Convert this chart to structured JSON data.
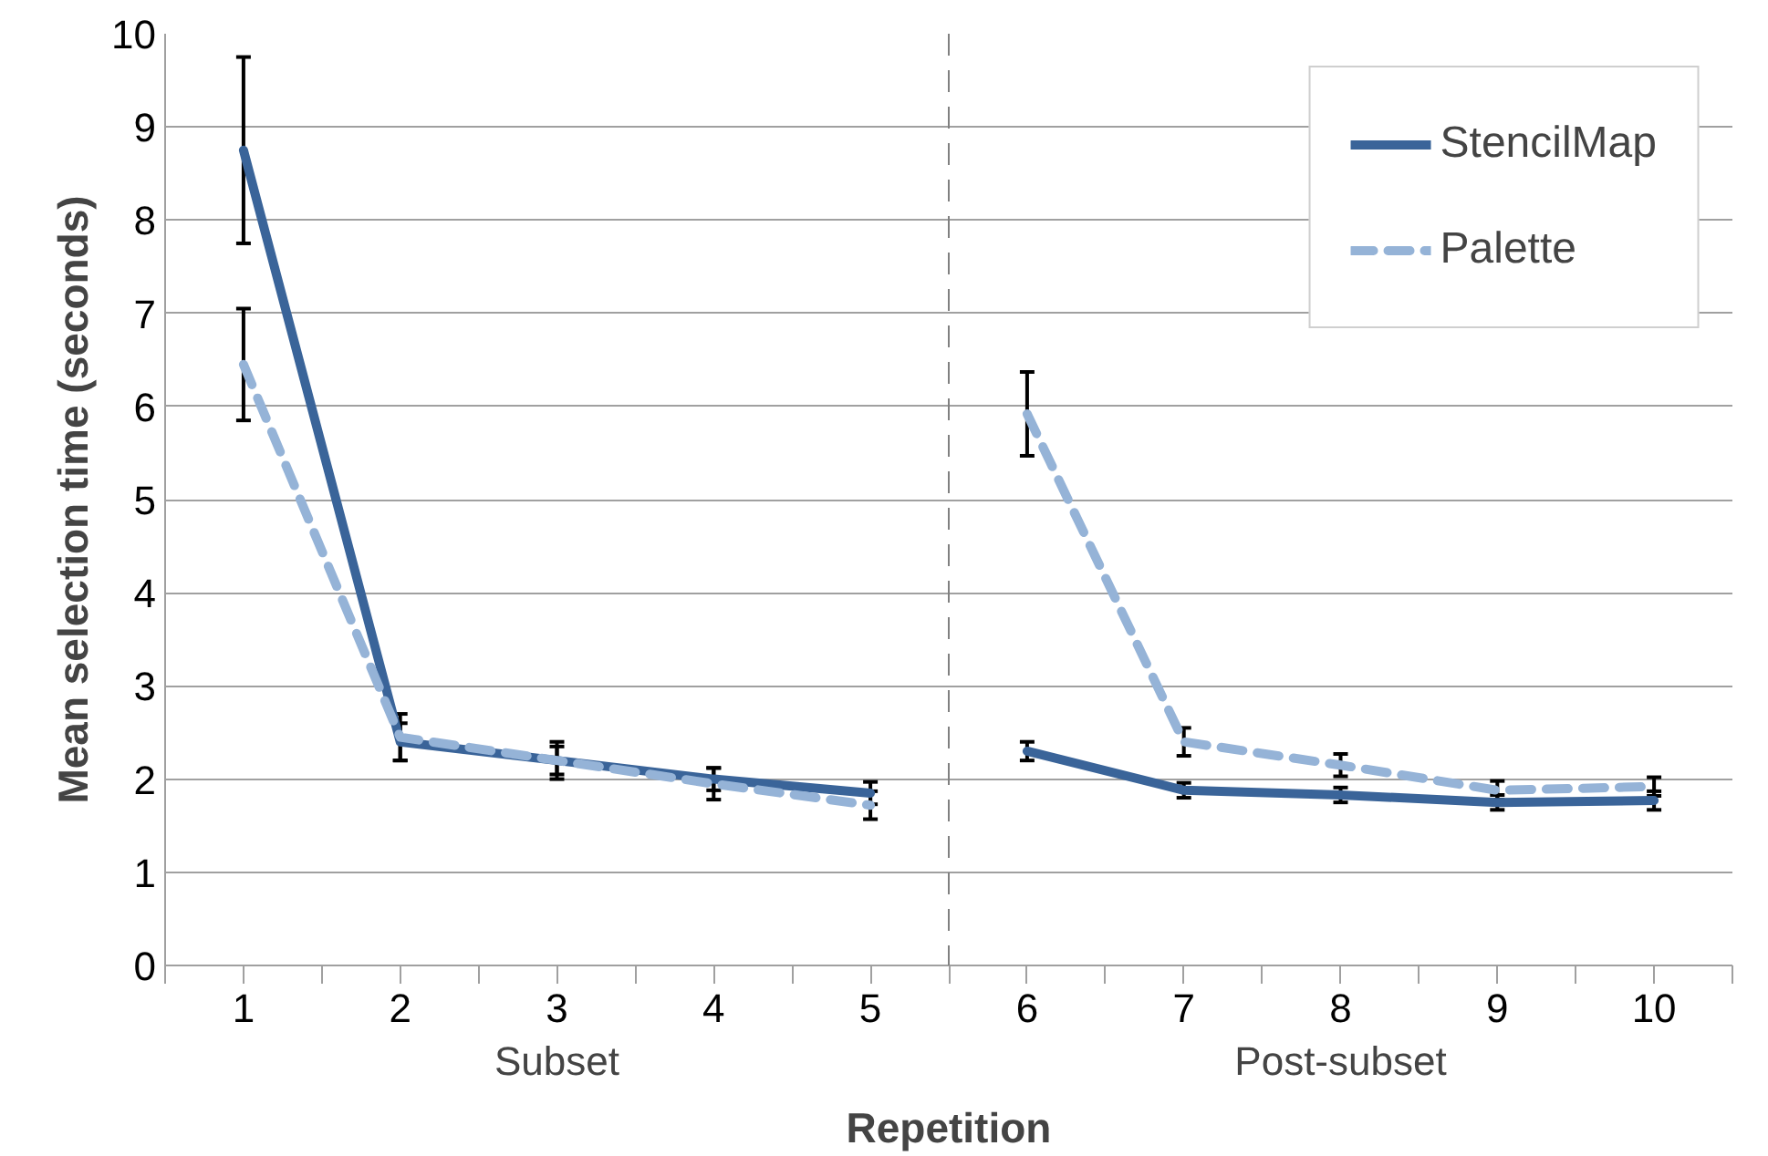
{
  "chart_data": {
    "type": "line",
    "ylabel": "Mean selection time (seconds)",
    "xlabel": "Repetition",
    "x": [
      1,
      2,
      3,
      4,
      5,
      6,
      7,
      8,
      9,
      10
    ],
    "xlim": [
      0.5,
      10.5
    ],
    "xticks": [
      {
        "value": 0.5,
        "label": null
      },
      1,
      {
        "value": 1.5,
        "label": null
      },
      2,
      {
        "value": 2.5,
        "label": null
      },
      3,
      {
        "value": 3.5,
        "label": null
      },
      4,
      {
        "value": 4.5,
        "label": null
      },
      5,
      {
        "value": 5.5,
        "label": null
      },
      6,
      {
        "value": 6.5,
        "label": null
      },
      7,
      {
        "value": 7.5,
        "label": null
      },
      8,
      {
        "value": 8.5,
        "label": null
      },
      9,
      {
        "value": 9.5,
        "label": null
      },
      10,
      {
        "value": 10.5,
        "label": null
      }
    ],
    "ylim": [
      0,
      10
    ],
    "yticks": [
      0,
      1,
      2,
      3,
      4,
      5,
      6,
      7,
      8,
      9,
      10
    ],
    "series": [
      {
        "name": "StencilMap",
        "color": "#3a6499",
        "line_style": "solid",
        "values": [
          8.75,
          2.4,
          2.2,
          2.0,
          1.85,
          2.3,
          1.88,
          1.83,
          1.75,
          1.77
        ],
        "errors": [
          1.0,
          0.2,
          0.15,
          0.12,
          0.12,
          0.1,
          0.08,
          0.08,
          0.08,
          0.1
        ]
      },
      {
        "name": "Palette",
        "color": "#95b3d7",
        "line_style": "dashed",
        "values": [
          6.45,
          2.45,
          2.2,
          1.95,
          1.72,
          5.92,
          2.4,
          2.15,
          1.88,
          1.92
        ],
        "errors": [
          0.6,
          0.25,
          0.2,
          0.17,
          0.15,
          0.45,
          0.15,
          0.12,
          0.1,
          0.1
        ]
      }
    ],
    "ref_lines": [
      {
        "axis": "x",
        "value": 5.5,
        "color": "#808080",
        "line_style": "dashed"
      }
    ],
    "annotations": [
      "Subset",
      "Post-subset"
    ],
    "grid": "y",
    "legend": "top right"
  }
}
